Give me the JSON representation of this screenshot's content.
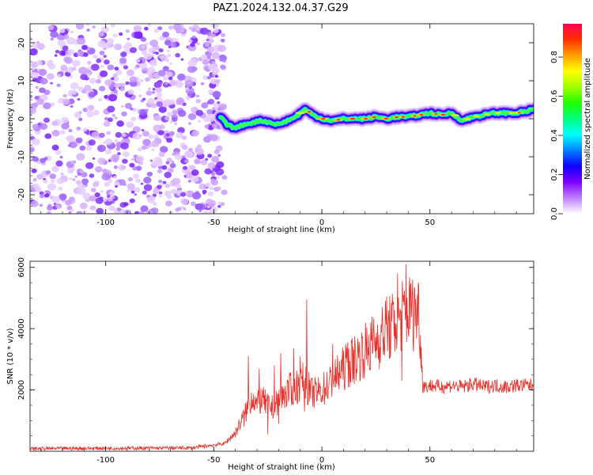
{
  "title": "PAZ1.2024.132.04.37.G29",
  "chart_data": [
    {
      "type": "heatmap",
      "xlabel": "Height of straight line (km)",
      "ylabel": "Frequency (Hz)",
      "xlim": [
        -135,
        98
      ],
      "ylim": [
        -25,
        25
      ],
      "xticks": [
        -100,
        -50,
        0,
        50
      ],
      "xtick_labels": [
        "-100",
        "-50",
        "0",
        "50"
      ],
      "yticks": [
        -20,
        -10,
        0,
        10,
        20
      ],
      "ytick_labels": [
        "-20",
        "-10",
        "0",
        "10",
        "20"
      ],
      "noise_region_x": [
        -135,
        -47
      ],
      "ridge": {
        "x": [
          -47,
          -44,
          -40,
          -36,
          -32,
          -28,
          -24,
          -20,
          -16,
          -12,
          -8,
          -4,
          0,
          5,
          10,
          15,
          20,
          25,
          30,
          35,
          40,
          45,
          50,
          55,
          60,
          65,
          70,
          75,
          80,
          85,
          90,
          95,
          98
        ],
        "y": [
          0.5,
          -1.5,
          -2.5,
          -1.5,
          -1.0,
          -0.5,
          -1.0,
          -1.5,
          -0.5,
          0.5,
          2.5,
          1.0,
          0.0,
          -0.5,
          0.0,
          0.0,
          0.0,
          0.5,
          0.0,
          0.5,
          0.5,
          1.0,
          1.5,
          1.0,
          1.5,
          -0.5,
          0.5,
          1.0,
          1.5,
          1.5,
          1.5,
          2.0,
          2.5
        ]
      },
      "colorbar": {
        "label": "Normalized spectral amplitude",
        "range": [
          0,
          0.97
        ],
        "ticks": [
          0.0,
          0.2,
          0.4,
          0.6,
          0.8
        ],
        "tick_labels": [
          "0.0",
          "0.2",
          "0.4",
          "0.6",
          "0.8"
        ],
        "colors": [
          "#ffffff",
          "#c080ff",
          "#7f00ff",
          "#1000ff",
          "#0080ff",
          "#00ffff",
          "#00ff80",
          "#20ff00",
          "#a0ff00",
          "#ffff00",
          "#ffa000",
          "#ff3000",
          "#ff0050"
        ]
      }
    },
    {
      "type": "line",
      "xlabel": "Height of straight line (km)",
      "ylabel": "SNR (10 * v/v)",
      "xlim": [
        -135,
        98
      ],
      "ylim": [
        0,
        6200
      ],
      "xticks": [
        -100,
        -50,
        0,
        50
      ],
      "xtick_labels": [
        "-100",
        "-50",
        "0",
        "50"
      ],
      "yticks": [
        2000,
        4000,
        6000
      ],
      "ytick_labels": [
        "2000",
        "4000",
        "6000"
      ],
      "series": [
        {
          "color": "#e8302a",
          "x": [
            -135,
            -120,
            -100,
            -80,
            -60,
            -45,
            -40,
            -35,
            -32,
            -30,
            -28,
            -25,
            -22,
            -20,
            -18,
            -15,
            -12,
            -10,
            -8,
            -5,
            -2,
            0,
            5,
            10,
            15,
            20,
            25,
            30,
            33,
            35,
            38,
            40,
            43,
            45,
            46,
            47,
            48,
            50,
            55,
            60,
            65,
            70,
            75,
            80,
            85,
            90,
            95,
            98
          ],
          "y": [
            80,
            90,
            100,
            100,
            110,
            250,
            600,
            1300,
            1800,
            1500,
            1700,
            1500,
            1400,
            1700,
            1800,
            2000,
            2100,
            2200,
            2300,
            1900,
            1900,
            2000,
            2300,
            2700,
            3000,
            3300,
            3600,
            3950,
            4100,
            4300,
            4500,
            4600,
            4500,
            4650,
            3000,
            2200,
            2100,
            2150,
            2100,
            2150,
            2100,
            2200,
            2100,
            2150,
            2100,
            2150,
            2150,
            2150
          ],
          "spikes": [
            {
              "x": -34,
              "y": 3100
            },
            {
              "x": -29,
              "y": 2700
            },
            {
              "x": -22,
              "y": 2800
            },
            {
              "x": -19,
              "y": 3200
            },
            {
              "x": -13,
              "y": 3350
            },
            {
              "x": -10,
              "y": 3100
            },
            {
              "x": -7,
              "y": 4950
            },
            {
              "x": 5,
              "y": 3500
            },
            {
              "x": 12,
              "y": 3550
            },
            {
              "x": 30,
              "y": 5050
            },
            {
              "x": 35,
              "y": 5800
            },
            {
              "x": 37,
              "y": 6200
            },
            {
              "x": 39,
              "y": 6100
            },
            {
              "x": 41,
              "y": 5400
            },
            {
              "x": 43,
              "y": 5300
            }
          ],
          "floor_dips": [
            {
              "x": -36,
              "y": 800
            },
            {
              "x": -25,
              "y": 550
            },
            {
              "x": -20,
              "y": 900
            },
            {
              "x": -14,
              "y": 1500
            },
            {
              "x": -8,
              "y": 1300
            },
            {
              "x": 37,
              "y": 2300
            }
          ]
        }
      ]
    }
  ]
}
